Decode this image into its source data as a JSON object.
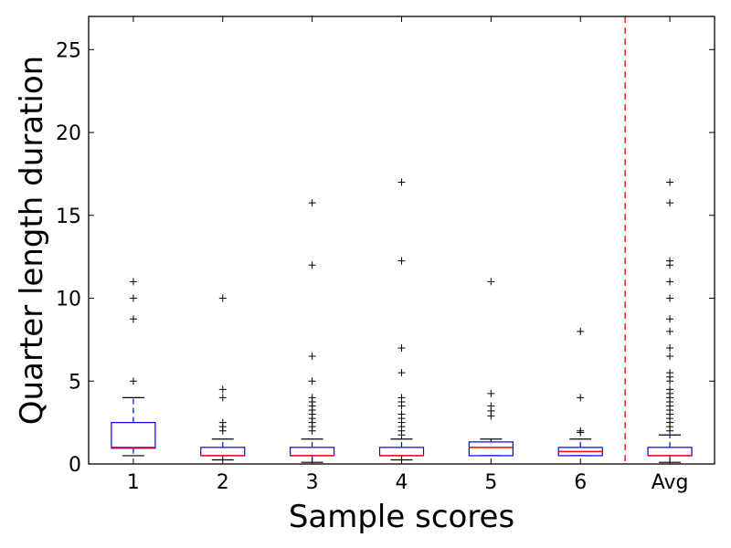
{
  "chart_data": {
    "type": "boxplot",
    "title": "",
    "xlabel": "Sample scores",
    "ylabel": "Quarter length duration",
    "ylim": [
      0,
      27
    ],
    "yticks": [
      0,
      5,
      10,
      15,
      20,
      25
    ],
    "categories": [
      "1",
      "2",
      "3",
      "4",
      "5",
      "6",
      "Avg"
    ],
    "separator_after_category": "6",
    "grid": false,
    "colors": {
      "box": "#0000ff",
      "median": "#ff0000",
      "whisker": "#0000ff",
      "flier": "#000000",
      "separator": "#ff0000",
      "axes": "#000000"
    },
    "boxes": [
      {
        "category": "1",
        "whisker_low": 0.5,
        "q1": 0.95,
        "median": 1.0,
        "q3": 2.5,
        "whisker_high": 4.0,
        "fliers": [
          5.0,
          8.75,
          10.0,
          11.0
        ]
      },
      {
        "category": "2",
        "whisker_low": 0.25,
        "q1": 0.5,
        "median": 0.5,
        "q3": 1.0,
        "whisker_high": 1.5,
        "fliers": [
          2.0,
          2.25,
          2.5,
          4.0,
          4.5,
          10.0
        ]
      },
      {
        "category": "3",
        "whisker_low": 0.1,
        "q1": 0.5,
        "median": 0.5,
        "q3": 1.0,
        "whisker_high": 1.5,
        "fliers": [
          2.0,
          2.25,
          2.5,
          2.75,
          3.0,
          3.25,
          3.5,
          3.75,
          4.0,
          5.0,
          6.5,
          12.0,
          15.75
        ]
      },
      {
        "category": "4",
        "whisker_low": 0.25,
        "q1": 0.5,
        "median": 0.5,
        "q3": 1.0,
        "whisker_high": 1.5,
        "fliers": [
          1.75,
          2.0,
          2.25,
          2.5,
          2.75,
          3.0,
          3.5,
          3.75,
          4.0,
          5.5,
          7.0,
          12.25,
          17.0
        ]
      },
      {
        "category": "5",
        "whisker_low": 0.5,
        "q1": 0.5,
        "median": 1.0,
        "q3": 1.33,
        "whisker_high": 1.5,
        "fliers": [
          2.9,
          3.2,
          3.5,
          4.25,
          11.0
        ]
      },
      {
        "category": "6",
        "whisker_low": 0.5,
        "q1": 0.5,
        "median": 0.75,
        "q3": 1.0,
        "whisker_high": 1.5,
        "fliers": [
          1.9,
          2.0,
          4.0,
          8.0
        ]
      },
      {
        "category": "Avg",
        "whisker_low": 0.1,
        "q1": 0.5,
        "median": 0.5,
        "q3": 1.0,
        "whisker_high": 1.75,
        "fliers": [
          2.0,
          2.25,
          2.5,
          2.75,
          3.0,
          3.25,
          3.5,
          3.75,
          4.0,
          4.25,
          4.5,
          5.0,
          5.25,
          5.5,
          6.5,
          7.0,
          8.0,
          8.75,
          10.0,
          11.0,
          12.0,
          12.25,
          15.75,
          17.0
        ]
      }
    ]
  }
}
